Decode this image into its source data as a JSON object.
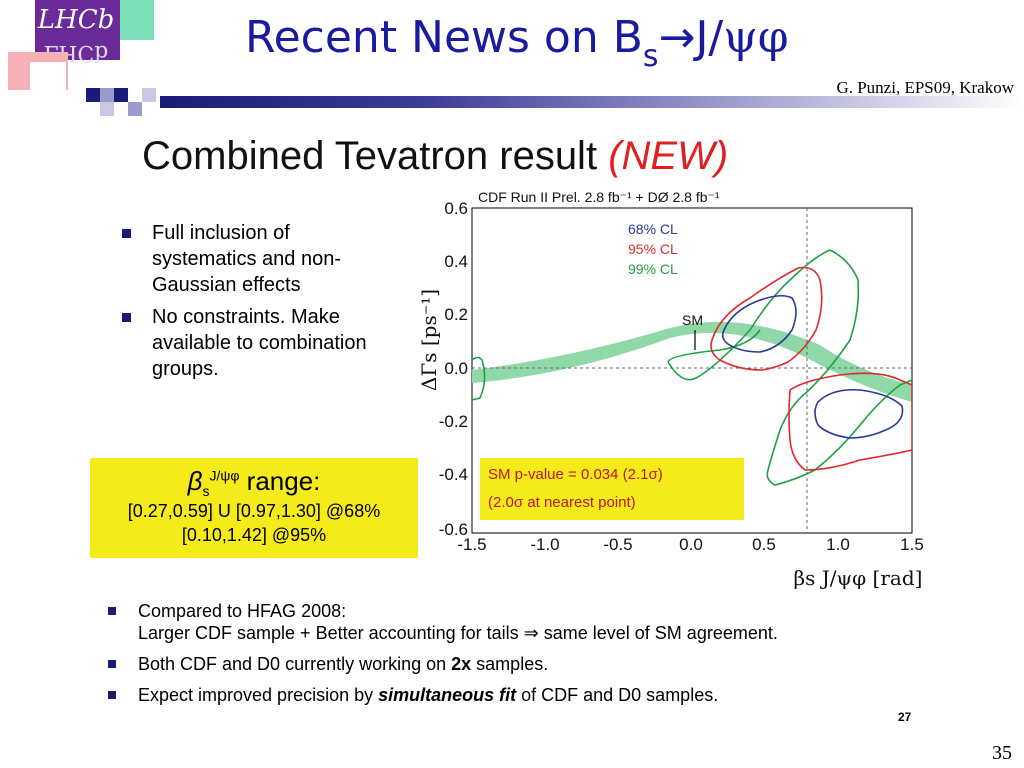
{
  "slide": {
    "title_prefix": "Recent News on B",
    "title_sub": "s",
    "title_arrow": "→",
    "title_jpsi": "J/",
    "title_psi": "ψ",
    "title_phi": "φ",
    "byline": "G. Punzi, EPS09, Krakow",
    "page_number": "35"
  },
  "content": {
    "headline": "Combined Tevatron result",
    "headline_tag": "(NEW)",
    "top_bullets": [
      "Full inclusion of systematics and non-Gaussian effects",
      "No constraints. Make available to combination groups."
    ],
    "beta_box": {
      "symbol": "β",
      "subscript": "s",
      "superscript": "J/ψφ",
      "label": "range:",
      "line1": "[0.27,0.59] U [0.97,1.30] @68%",
      "line2": "[0.10,1.42] @95%"
    },
    "bottom_bullets": [
      {
        "line1": "Compared to HFAG 2008:",
        "line2": "Larger CDF sample + Better accounting for tails ⇒ same level of SM agreement."
      },
      {
        "pre": "Both CDF and D0 currently working on ",
        "bold": "2x",
        "post": " samples."
      },
      {
        "pre": "Expect improved precision by ",
        "bold": "simultaneous fit",
        "post": " of CDF and D0 samples."
      }
    ],
    "inner_page": "27"
  },
  "plot": {
    "header": "CDF  Run II Prel. 2.8 fb⁻¹ + DØ  2.8 fb⁻¹",
    "legend": [
      "68% CL",
      "95% CL",
      "99% CL"
    ],
    "sm_label": "SM",
    "pvalue_line1": "SM p-value = 0.034 (2.1σ)",
    "pvalue_line2": "(2.0σ at nearest point)",
    "y_label": "ΔΓs [ps⁻¹]",
    "x_label": "βs J/ψφ [rad]",
    "x_ticks": [
      "-1.5",
      "-1.0",
      "-0.5",
      "0.0",
      "0.5",
      "1.0",
      "1.5"
    ],
    "y_ticks": [
      "0.6",
      "0.4",
      "0.2",
      "0.0",
      "-0.2",
      "-0.4",
      "-0.6"
    ],
    "colors": {
      "cl68": "#2a3a9a",
      "cl95": "#e02a2a",
      "cl99": "#1fa040",
      "band": "#8fd8a8",
      "pbox": "#f5eb1a"
    }
  }
}
